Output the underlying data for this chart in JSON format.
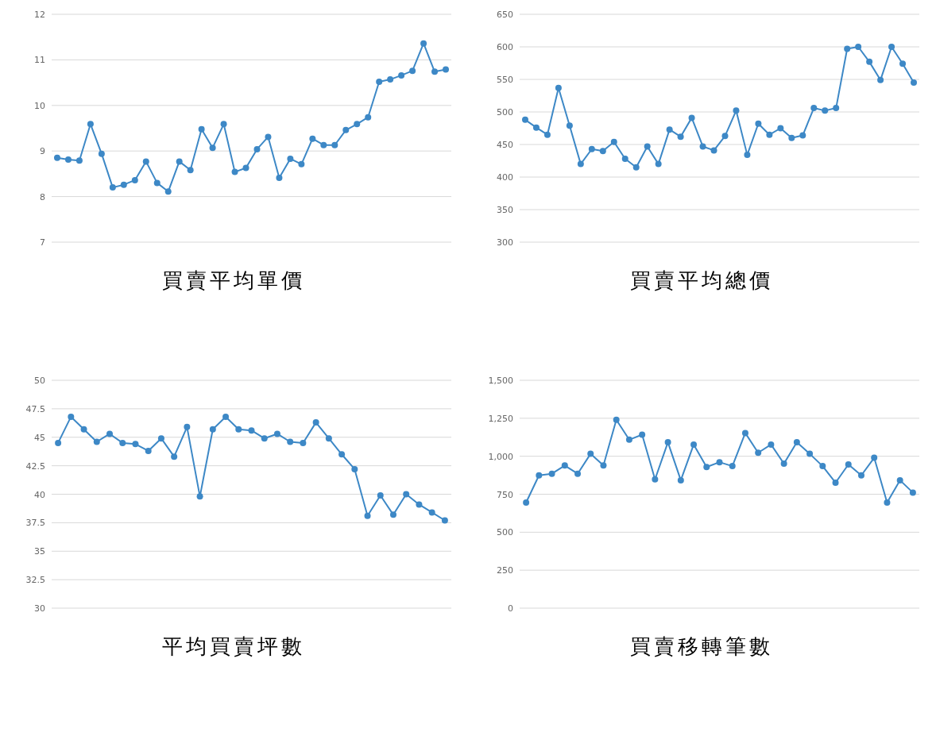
{
  "chart_data": [
    {
      "type": "line",
      "title": "買賣平均單價",
      "categories": [
        null,
        null,
        null,
        null,
        null,
        null,
        null,
        null,
        null,
        null,
        null,
        null,
        null,
        null,
        null,
        null,
        null,
        null,
        null,
        null,
        null,
        null,
        null,
        null,
        null,
        null,
        null,
        null,
        null,
        null,
        null,
        null,
        null,
        null,
        null,
        null
      ],
      "ylim": [
        7,
        12
      ],
      "yticks": [
        7,
        8,
        9,
        10,
        11,
        12
      ],
      "grid": "y",
      "marker": "circle",
      "line_style": "solid",
      "series": [
        {
          "color": "#3d88c6",
          "values": [
            8.85,
            8.81,
            8.79,
            9.59,
            8.94,
            8.2,
            8.26,
            8.36,
            8.77,
            8.3,
            8.11,
            8.77,
            8.58,
            9.48,
            9.07,
            9.59,
            8.54,
            8.63,
            9.04,
            9.31,
            8.41,
            8.83,
            8.71,
            9.27,
            9.13,
            9.13,
            9.46,
            9.59,
            9.74,
            10.52,
            10.57,
            10.66,
            10.76,
            11.36,
            10.74,
            10.79
          ]
        }
      ]
    },
    {
      "type": "line",
      "title": "買賣平均總價",
      "categories": [
        null,
        null,
        null,
        null,
        null,
        null,
        null,
        null,
        null,
        null,
        null,
        null,
        null,
        null,
        null,
        null,
        null,
        null,
        null,
        null,
        null,
        null,
        null,
        null,
        null,
        null,
        null,
        null,
        null,
        null,
        null,
        null,
        null,
        null,
        null,
        null
      ],
      "ylim": [
        300,
        650
      ],
      "yticks": [
        300,
        350,
        400,
        450,
        500,
        550,
        600,
        650
      ],
      "grid": "y",
      "marker": "circle",
      "line_style": "solid",
      "series": [
        {
          "color": "#3d88c6",
          "values": [
            488,
            476,
            465,
            537,
            479,
            420,
            443,
            440,
            454,
            428,
            415,
            447,
            420,
            473,
            462,
            491,
            447,
            441,
            463,
            502,
            434,
            482,
            465,
            475,
            460,
            464,
            506,
            502,
            506,
            597,
            600,
            577,
            549,
            600,
            574,
            545
          ]
        }
      ]
    },
    {
      "type": "line",
      "title": "平均買賣坪數",
      "categories": [
        null,
        null,
        null,
        null,
        null,
        null,
        null,
        null,
        null,
        null,
        null,
        null,
        null,
        null,
        null,
        null,
        null,
        null,
        null,
        null,
        null,
        null,
        null,
        null,
        null,
        null,
        null,
        null,
        null,
        null,
        null
      ],
      "ylim": [
        30,
        50
      ],
      "yticks": [
        30,
        32.5,
        35,
        37.5,
        40,
        42.5,
        45,
        47.5,
        50
      ],
      "grid": "y",
      "marker": "circle",
      "line_style": "solid",
      "series": [
        {
          "color": "#3d88c6",
          "values": [
            44.5,
            46.8,
            45.7,
            44.6,
            45.3,
            44.5,
            44.4,
            43.8,
            44.9,
            43.3,
            45.9,
            39.8,
            45.7,
            46.8,
            45.7,
            45.6,
            44.9,
            45.3,
            44.6,
            44.5,
            46.3,
            44.9,
            43.5,
            42.2,
            38.1,
            39.9,
            38.2,
            40.0,
            39.1,
            38.4,
            37.7
          ]
        }
      ]
    },
    {
      "type": "line",
      "title": "買賣移轉筆數",
      "categories": [
        null,
        null,
        null,
        null,
        null,
        null,
        null,
        null,
        null,
        null,
        null,
        null,
        null,
        null,
        null,
        null,
        null,
        null,
        null,
        null,
        null,
        null,
        null,
        null,
        null,
        null,
        null,
        null,
        null,
        null,
        null
      ],
      "ylim": [
        0,
        1500
      ],
      "yticks": [
        0,
        250,
        500,
        750,
        {
          "value": 1000,
          "label": "1,000"
        },
        {
          "value": 1250,
          "label": "1,250"
        },
        {
          "value": 1500,
          "label": "1,500"
        }
      ],
      "grid": "y",
      "marker": "circle",
      "line_style": "solid",
      "series": [
        {
          "color": "#3d88c6",
          "values": [
            695,
            874,
            885,
            939,
            885,
            1016,
            940,
            1240,
            1109,
            1142,
            848,
            1092,
            842,
            1077,
            929,
            961,
            935,
            1153,
            1023,
            1077,
            951,
            1092,
            1016,
            935,
            826,
            946,
            874,
            990,
            695,
            842,
            761
          ]
        }
      ]
    }
  ]
}
